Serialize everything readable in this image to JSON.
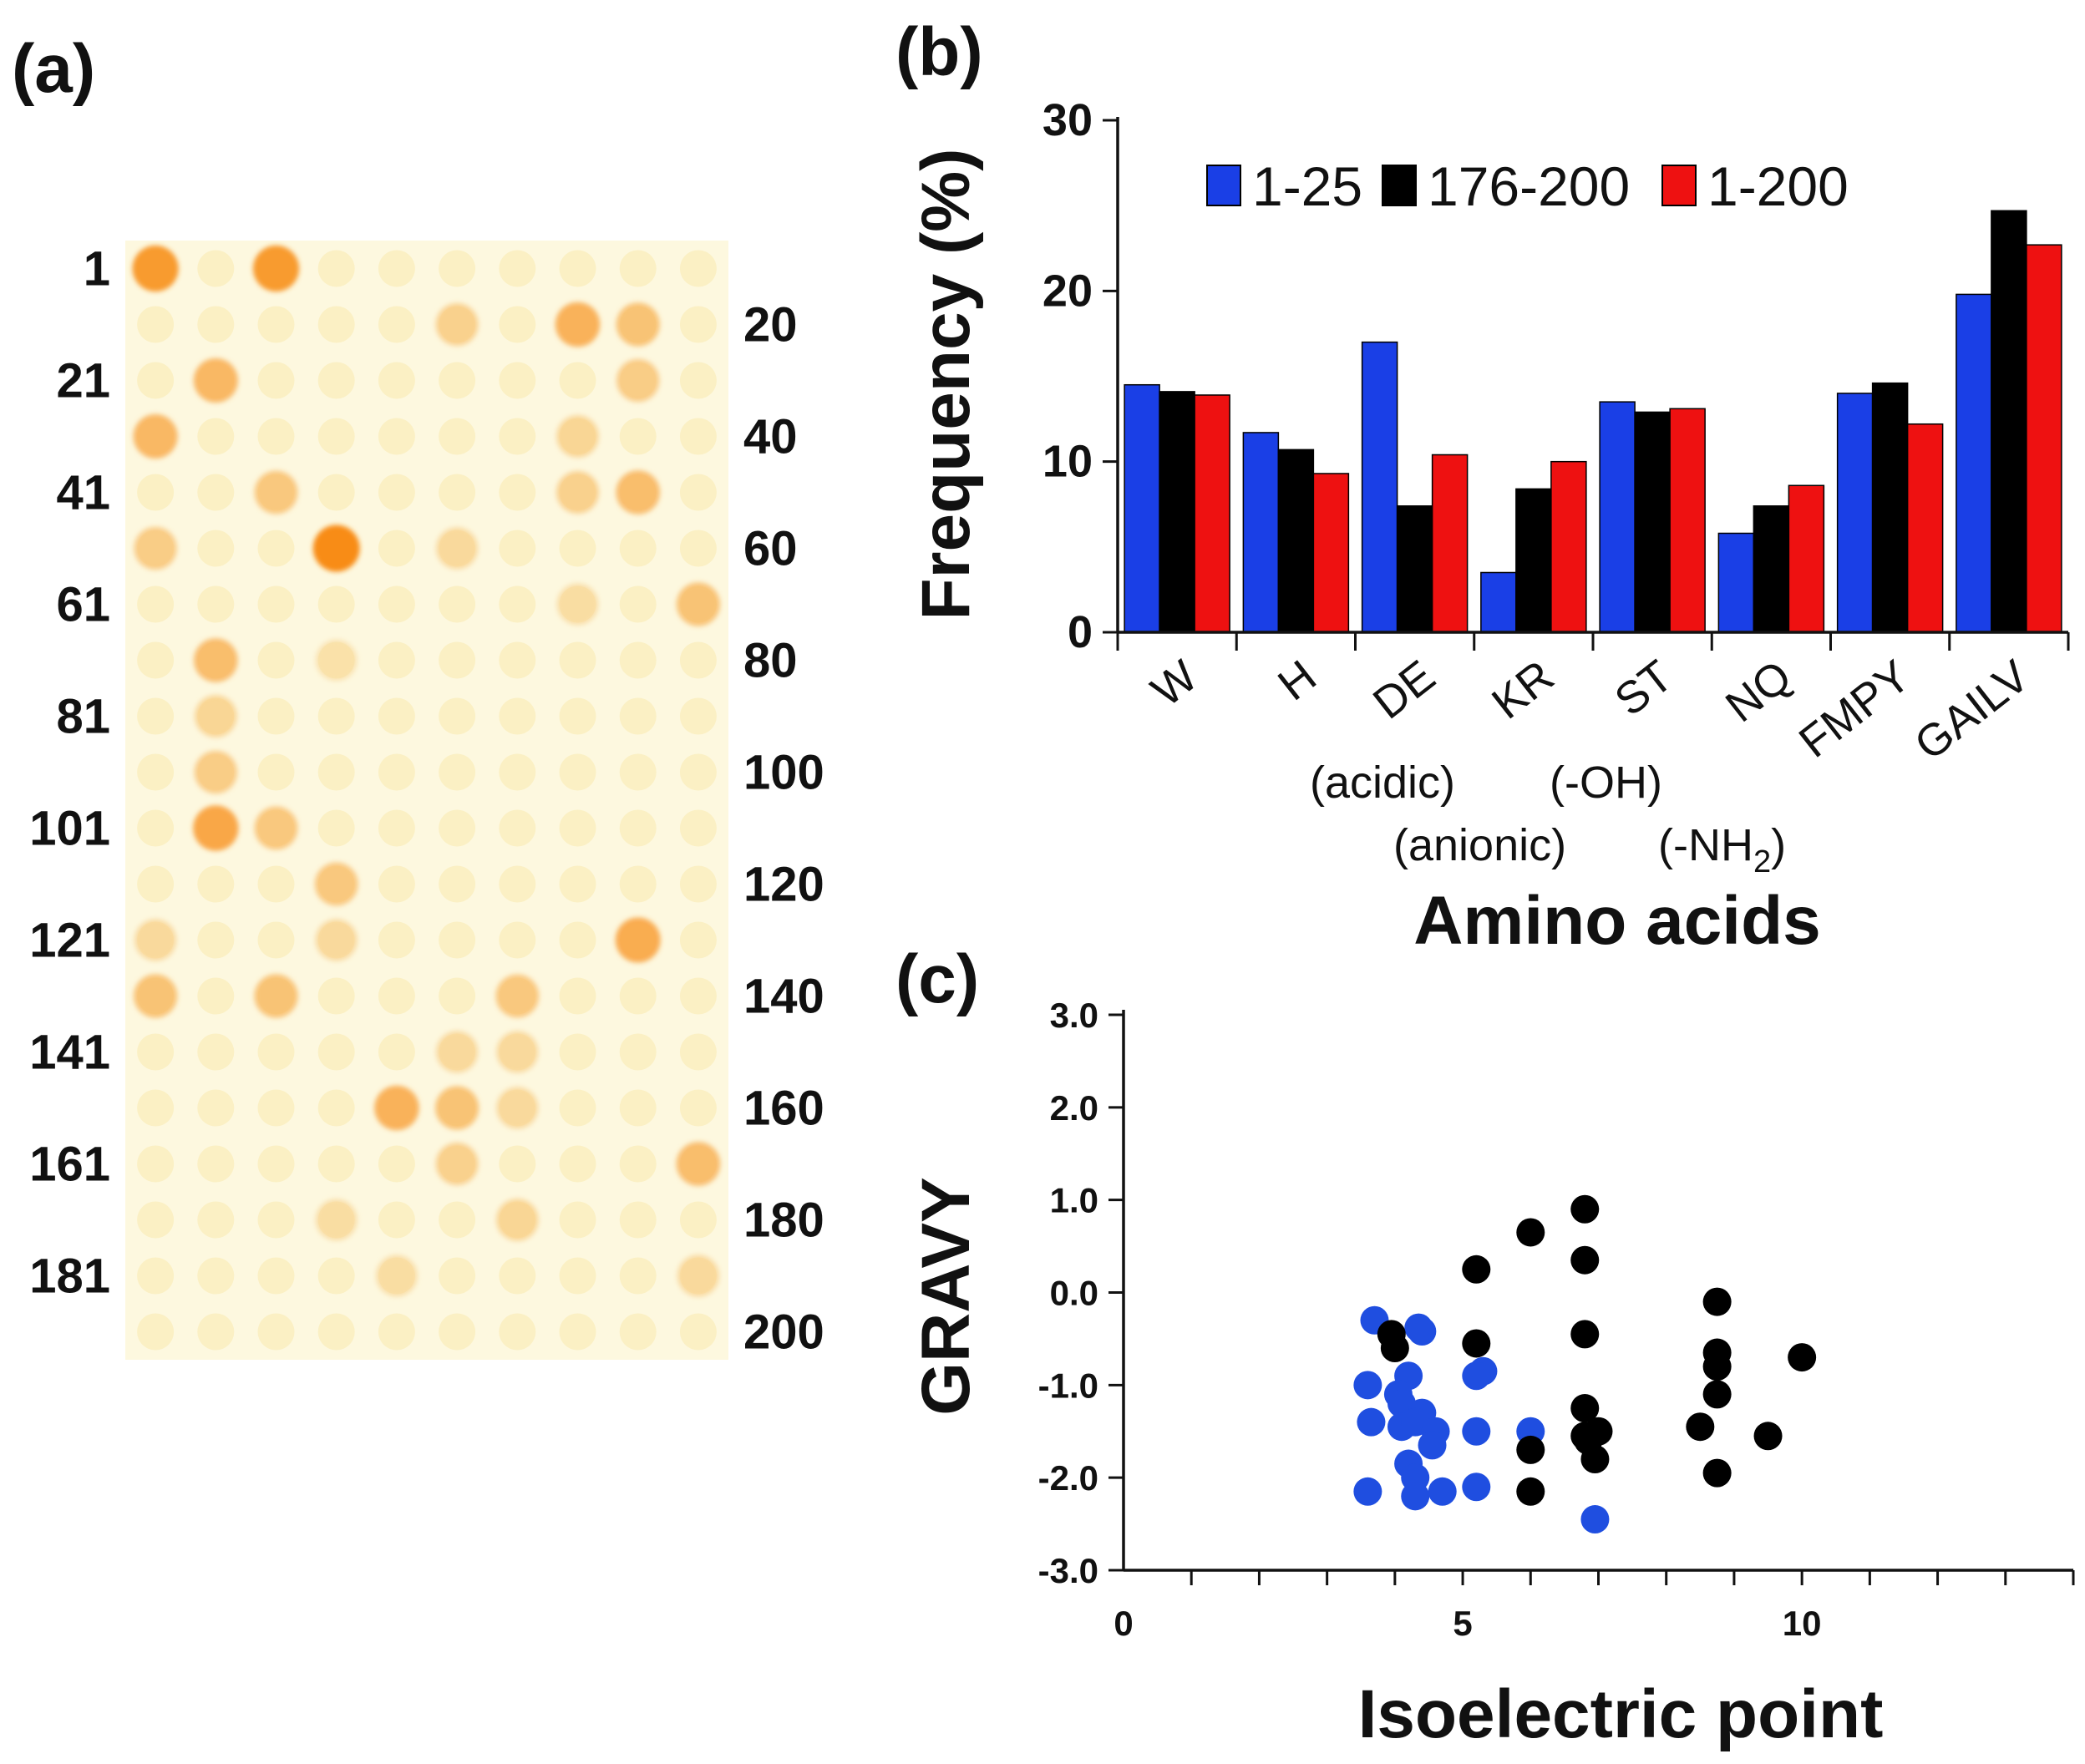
{
  "panel_a": {
    "label": "(a)",
    "left_labels": [
      "1",
      "21",
      "41",
      "61",
      "81",
      "101",
      "121",
      "141",
      "161",
      "181"
    ],
    "right_labels": [
      "20",
      "40",
      "60",
      "80",
      "100",
      "120",
      "140",
      "160",
      "180",
      "200"
    ],
    "grid_columns": 10,
    "grid_rows": 20,
    "spots": [
      {
        "row": 1,
        "col": 1,
        "level": 0.9
      },
      {
        "row": 1,
        "col": 3,
        "level": 0.9
      },
      {
        "row": 2,
        "col": 6,
        "level": 0.4
      },
      {
        "row": 2,
        "col": 8,
        "level": 0.7
      },
      {
        "row": 2,
        "col": 9,
        "level": 0.55
      },
      {
        "row": 3,
        "col": 2,
        "level": 0.65
      },
      {
        "row": 3,
        "col": 9,
        "level": 0.45
      },
      {
        "row": 4,
        "col": 1,
        "level": 0.65
      },
      {
        "row": 4,
        "col": 8,
        "level": 0.35
      },
      {
        "row": 5,
        "col": 3,
        "level": 0.5
      },
      {
        "row": 5,
        "col": 8,
        "level": 0.4
      },
      {
        "row": 5,
        "col": 9,
        "level": 0.6
      },
      {
        "row": 6,
        "col": 1,
        "level": 0.45
      },
      {
        "row": 6,
        "col": 4,
        "level": 1.0
      },
      {
        "row": 6,
        "col": 6,
        "level": 0.3
      },
      {
        "row": 7,
        "col": 8,
        "level": 0.25
      },
      {
        "row": 7,
        "col": 10,
        "level": 0.55
      },
      {
        "row": 8,
        "col": 2,
        "level": 0.6
      },
      {
        "row": 8,
        "col": 4,
        "level": 0.2
      },
      {
        "row": 9,
        "col": 2,
        "level": 0.35
      },
      {
        "row": 10,
        "col": 2,
        "level": 0.45
      },
      {
        "row": 11,
        "col": 2,
        "level": 0.8
      },
      {
        "row": 11,
        "col": 3,
        "level": 0.5
      },
      {
        "row": 12,
        "col": 4,
        "level": 0.5
      },
      {
        "row": 13,
        "col": 1,
        "level": 0.3
      },
      {
        "row": 13,
        "col": 4,
        "level": 0.3
      },
      {
        "row": 13,
        "col": 9,
        "level": 0.75
      },
      {
        "row": 14,
        "col": 1,
        "level": 0.55
      },
      {
        "row": 14,
        "col": 3,
        "level": 0.55
      },
      {
        "row": 14,
        "col": 7,
        "level": 0.5
      },
      {
        "row": 15,
        "col": 6,
        "level": 0.3
      },
      {
        "row": 15,
        "col": 7,
        "level": 0.3
      },
      {
        "row": 16,
        "col": 5,
        "level": 0.7
      },
      {
        "row": 16,
        "col": 6,
        "level": 0.55
      },
      {
        "row": 16,
        "col": 7,
        "level": 0.3
      },
      {
        "row": 17,
        "col": 6,
        "level": 0.4
      },
      {
        "row": 17,
        "col": 10,
        "level": 0.6
      },
      {
        "row": 18,
        "col": 7,
        "level": 0.35
      },
      {
        "row": 18,
        "col": 4,
        "level": 0.25
      },
      {
        "row": 19,
        "col": 5,
        "level": 0.25
      },
      {
        "row": 19,
        "col": 10,
        "level": 0.3
      }
    ]
  },
  "chart_data": [
    {
      "panel_label": "(b)",
      "type": "bar",
      "title": "",
      "xlabel": "Amino acids",
      "ylabel": "Frequency (%)",
      "ylim": [
        0,
        30
      ],
      "yticks": [
        "0",
        "10",
        "20",
        "30"
      ],
      "categories": [
        "W",
        "H",
        "DE",
        "KR",
        "ST",
        "NQ",
        "FMPY",
        "GAILV"
      ],
      "category_notes": [
        {
          "category": "DE",
          "text": "(acidic)"
        },
        {
          "category": "KR",
          "text": "(anionic)"
        },
        {
          "category": "ST",
          "text": "(-OH)"
        },
        {
          "category": "NQ",
          "text": "(-NH",
          "subscript": "2",
          "suffix": ")"
        }
      ],
      "series": [
        {
          "name": "1-25",
          "color": "#1a3fe6",
          "values": [
            14.5,
            11.7,
            17.0,
            3.5,
            13.5,
            5.8,
            14.0,
            19.8
          ]
        },
        {
          "name": "176-200",
          "color": "#000000",
          "values": [
            14.1,
            10.7,
            7.4,
            8.4,
            12.9,
            7.4,
            14.6,
            24.7
          ]
        },
        {
          "name": "1-200",
          "color": "#ee1111",
          "values": [
            13.9,
            9.3,
            10.4,
            10.0,
            13.1,
            8.6,
            12.2,
            22.7
          ]
        }
      ],
      "legend_position": "top"
    },
    {
      "panel_label": "(c)",
      "type": "scatter",
      "title": "",
      "xlabel": "Isoelectric point",
      "ylabel": "GRAVY",
      "xlim": [
        0,
        14
      ],
      "ylim": [
        -3.0,
        3.0
      ],
      "xticks": [
        "0",
        "5",
        "10"
      ],
      "yticks": [
        "3.0",
        "2.0",
        "1.0",
        "0.0",
        "-1.0",
        "-2.0",
        "-3.0"
      ],
      "series": [
        {
          "name": "1-25",
          "color": "#1f4ee0",
          "points": [
            [
              3.7,
              -0.3
            ],
            [
              4.35,
              -0.38
            ],
            [
              4.4,
              -0.42
            ],
            [
              3.6,
              -1.0
            ],
            [
              4.2,
              -0.9
            ],
            [
              4.05,
              -1.1
            ],
            [
              4.1,
              -1.2
            ],
            [
              4.4,
              -1.3
            ],
            [
              3.65,
              -1.4
            ],
            [
              4.1,
              -1.45
            ],
            [
              4.3,
              -1.4
            ],
            [
              4.6,
              -1.5
            ],
            [
              4.55,
              -1.65
            ],
            [
              5.3,
              -0.85
            ],
            [
              5.2,
              -0.9
            ],
            [
              5.2,
              -1.5
            ],
            [
              6.0,
              -1.5
            ],
            [
              4.2,
              -1.85
            ],
            [
              4.3,
              -2.0
            ],
            [
              3.6,
              -2.15
            ],
            [
              4.3,
              -2.2
            ],
            [
              4.7,
              -2.15
            ],
            [
              5.2,
              -2.1
            ],
            [
              6.95,
              -2.45
            ]
          ]
        },
        {
          "name": "176-200",
          "color": "#000000",
          "points": [
            [
              3.95,
              -0.45
            ],
            [
              4.0,
              -0.6
            ],
            [
              5.2,
              0.25
            ],
            [
              5.2,
              -0.55
            ],
            [
              6.0,
              0.65
            ],
            [
              6.8,
              0.9
            ],
            [
              6.8,
              0.35
            ],
            [
              6.8,
              -0.45
            ],
            [
              6.8,
              -1.25
            ],
            [
              6.8,
              -1.55
            ],
            [
              6.85,
              -1.6
            ],
            [
              7.0,
              -1.5
            ],
            [
              6.95,
              -1.8
            ],
            [
              6.0,
              -1.7
            ],
            [
              6.0,
              -2.15
            ],
            [
              8.75,
              -0.1
            ],
            [
              8.75,
              -0.65
            ],
            [
              8.75,
              -0.8
            ],
            [
              8.75,
              -1.1
            ],
            [
              8.5,
              -1.45
            ],
            [
              8.75,
              -1.95
            ],
            [
              9.5,
              -1.55
            ],
            [
              10.0,
              -0.7
            ]
          ]
        }
      ]
    }
  ]
}
